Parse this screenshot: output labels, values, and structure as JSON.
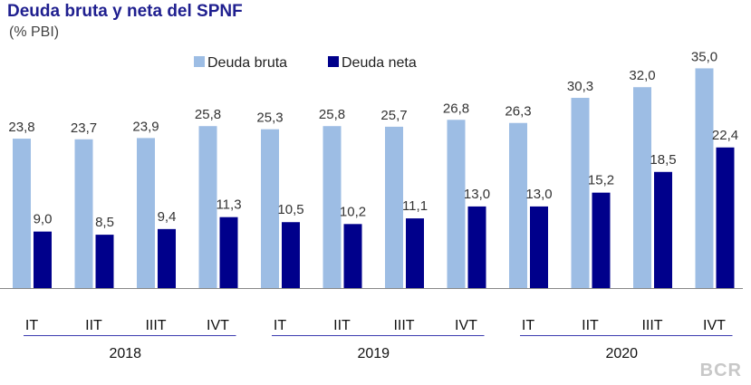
{
  "chart_data": {
    "type": "bar",
    "title": "Deuda bruta y neta del SPNF",
    "subtitle": "(% PBI)",
    "categories": [
      "IT",
      "IIT",
      "IIIT",
      "IVT",
      "IT",
      "IIT",
      "IIIT",
      "IVT",
      "IT",
      "IIT",
      "IIIT",
      "IVT"
    ],
    "groups": [
      {
        "label": "2018",
        "count": 4
      },
      {
        "label": "2019",
        "count": 4
      },
      {
        "label": "2020",
        "count": 4
      }
    ],
    "series": [
      {
        "name": "Deuda bruta",
        "color": "#9dbde4",
        "values": [
          23.8,
          23.7,
          23.9,
          25.8,
          25.3,
          25.8,
          25.7,
          26.8,
          26.3,
          30.3,
          32.0,
          35.0
        ],
        "labels": [
          "23,8",
          "23,7",
          "23,9",
          "25,8",
          "25,3",
          "25,8",
          "25,7",
          "26,8",
          "26,3",
          "30,3",
          "32,0",
          "35,0"
        ]
      },
      {
        "name": "Deuda neta",
        "color": "#00008b",
        "values": [
          9.0,
          8.5,
          9.4,
          11.3,
          10.5,
          10.2,
          11.1,
          13.0,
          13.0,
          15.2,
          18.5,
          22.4
        ],
        "labels": [
          "9,0",
          "8,5",
          "9,4",
          "11,3",
          "10,5",
          "10,2",
          "11,1",
          "13,0",
          "13,0",
          "15,2",
          "18,5",
          "22,4"
        ]
      }
    ],
    "ylim": [
      0,
      36
    ],
    "grid": false,
    "legend": "top-center",
    "watermark": "BCR"
  }
}
